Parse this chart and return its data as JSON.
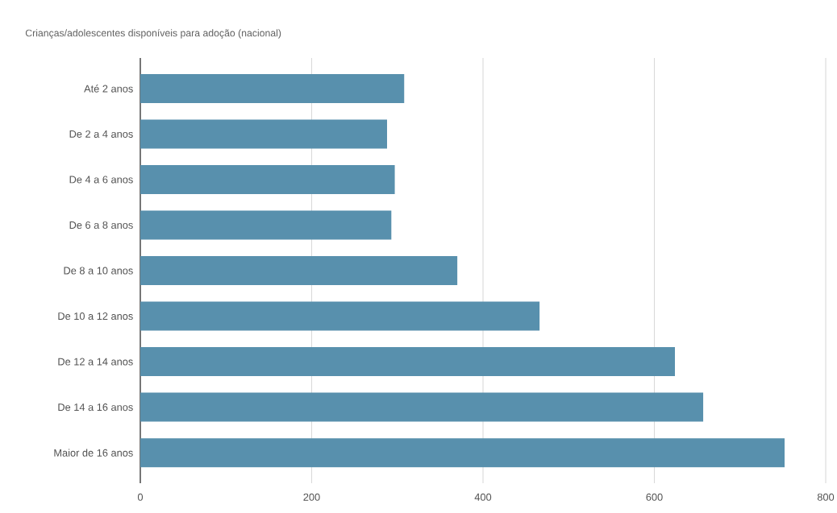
{
  "chart_data": {
    "type": "bar",
    "orientation": "horizontal",
    "title": "Crianças/adolescentes disponíveis para adoção (nacional)",
    "categories": [
      "Até 2 anos",
      "De 2 a 4 anos",
      "De 4 a 6 anos",
      "De 6 a 8 anos",
      "De 8 a 10 anos",
      "De 10 a 12 anos",
      "De 12 a 14 anos",
      "De 14 a 16 anos",
      "Maior de 16 anos"
    ],
    "values": [
      308,
      288,
      297,
      293,
      370,
      466,
      624,
      657,
      752
    ],
    "color": "#5890ad",
    "xlim": [
      0,
      800
    ],
    "xticks": [
      0,
      200,
      400,
      600,
      800
    ],
    "grid": "x"
  }
}
